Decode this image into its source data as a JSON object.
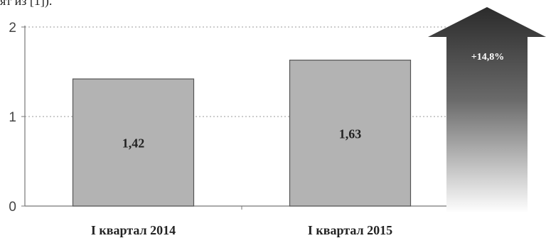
{
  "page": {
    "caption_fragment": "ят из [1])."
  },
  "chart_data": {
    "type": "bar",
    "categories": [
      "I квартал 2014",
      "I квартал 2015"
    ],
    "values": [
      1.42,
      1.63
    ],
    "value_labels": [
      "1,42",
      "1,63"
    ],
    "ylim": [
      0,
      2
    ],
    "yticks": [
      0,
      1,
      2
    ],
    "ytick_labels": [
      "0",
      "1",
      "2"
    ],
    "grid": "dotted horizontal",
    "bar_color": "#b3b3b3",
    "growth_label": "+14,8%",
    "title": "",
    "xlabel": "",
    "ylabel": ""
  }
}
